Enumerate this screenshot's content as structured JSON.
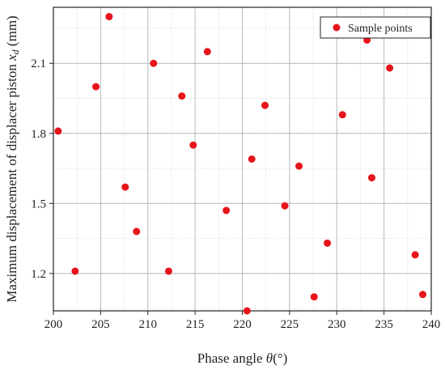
{
  "chart_data": {
    "type": "scatter",
    "xlabel": "Phase angle θ(°)",
    "ylabel": "Maximum displacement of displacer piston x_d (mm)",
    "xlim": [
      200,
      240
    ],
    "ylim": [
      1.04,
      2.34
    ],
    "xticks": [
      "200",
      "205",
      "210",
      "215",
      "220",
      "225",
      "230",
      "235",
      "240"
    ],
    "yticks": [
      "1.2",
      "1.5",
      "1.8",
      "2.1"
    ],
    "grid": true,
    "legend_position": "top-right",
    "color": "#e8141b",
    "series": [
      {
        "name": "Sample points",
        "points": [
          {
            "x": 200.5,
            "y": 1.81
          },
          {
            "x": 202.3,
            "y": 1.21
          },
          {
            "x": 204.5,
            "y": 2.0
          },
          {
            "x": 205.9,
            "y": 2.3
          },
          {
            "x": 207.6,
            "y": 1.57
          },
          {
            "x": 208.8,
            "y": 1.38
          },
          {
            "x": 210.6,
            "y": 2.1
          },
          {
            "x": 212.2,
            "y": 1.21
          },
          {
            "x": 213.6,
            "y": 1.96
          },
          {
            "x": 214.8,
            "y": 1.75
          },
          {
            "x": 216.3,
            "y": 2.15
          },
          {
            "x": 218.3,
            "y": 1.47
          },
          {
            "x": 220.5,
            "y": 1.04
          },
          {
            "x": 221.0,
            "y": 1.69
          },
          {
            "x": 222.4,
            "y": 1.92
          },
          {
            "x": 224.5,
            "y": 1.49
          },
          {
            "x": 226.0,
            "y": 1.66
          },
          {
            "x": 227.6,
            "y": 1.1
          },
          {
            "x": 229.0,
            "y": 1.33
          },
          {
            "x": 230.6,
            "y": 1.88
          },
          {
            "x": 233.2,
            "y": 2.2
          },
          {
            "x": 233.7,
            "y": 1.61
          },
          {
            "x": 235.6,
            "y": 2.08
          },
          {
            "x": 238.3,
            "y": 1.28
          },
          {
            "x": 239.1,
            "y": 1.11
          }
        ]
      }
    ]
  }
}
